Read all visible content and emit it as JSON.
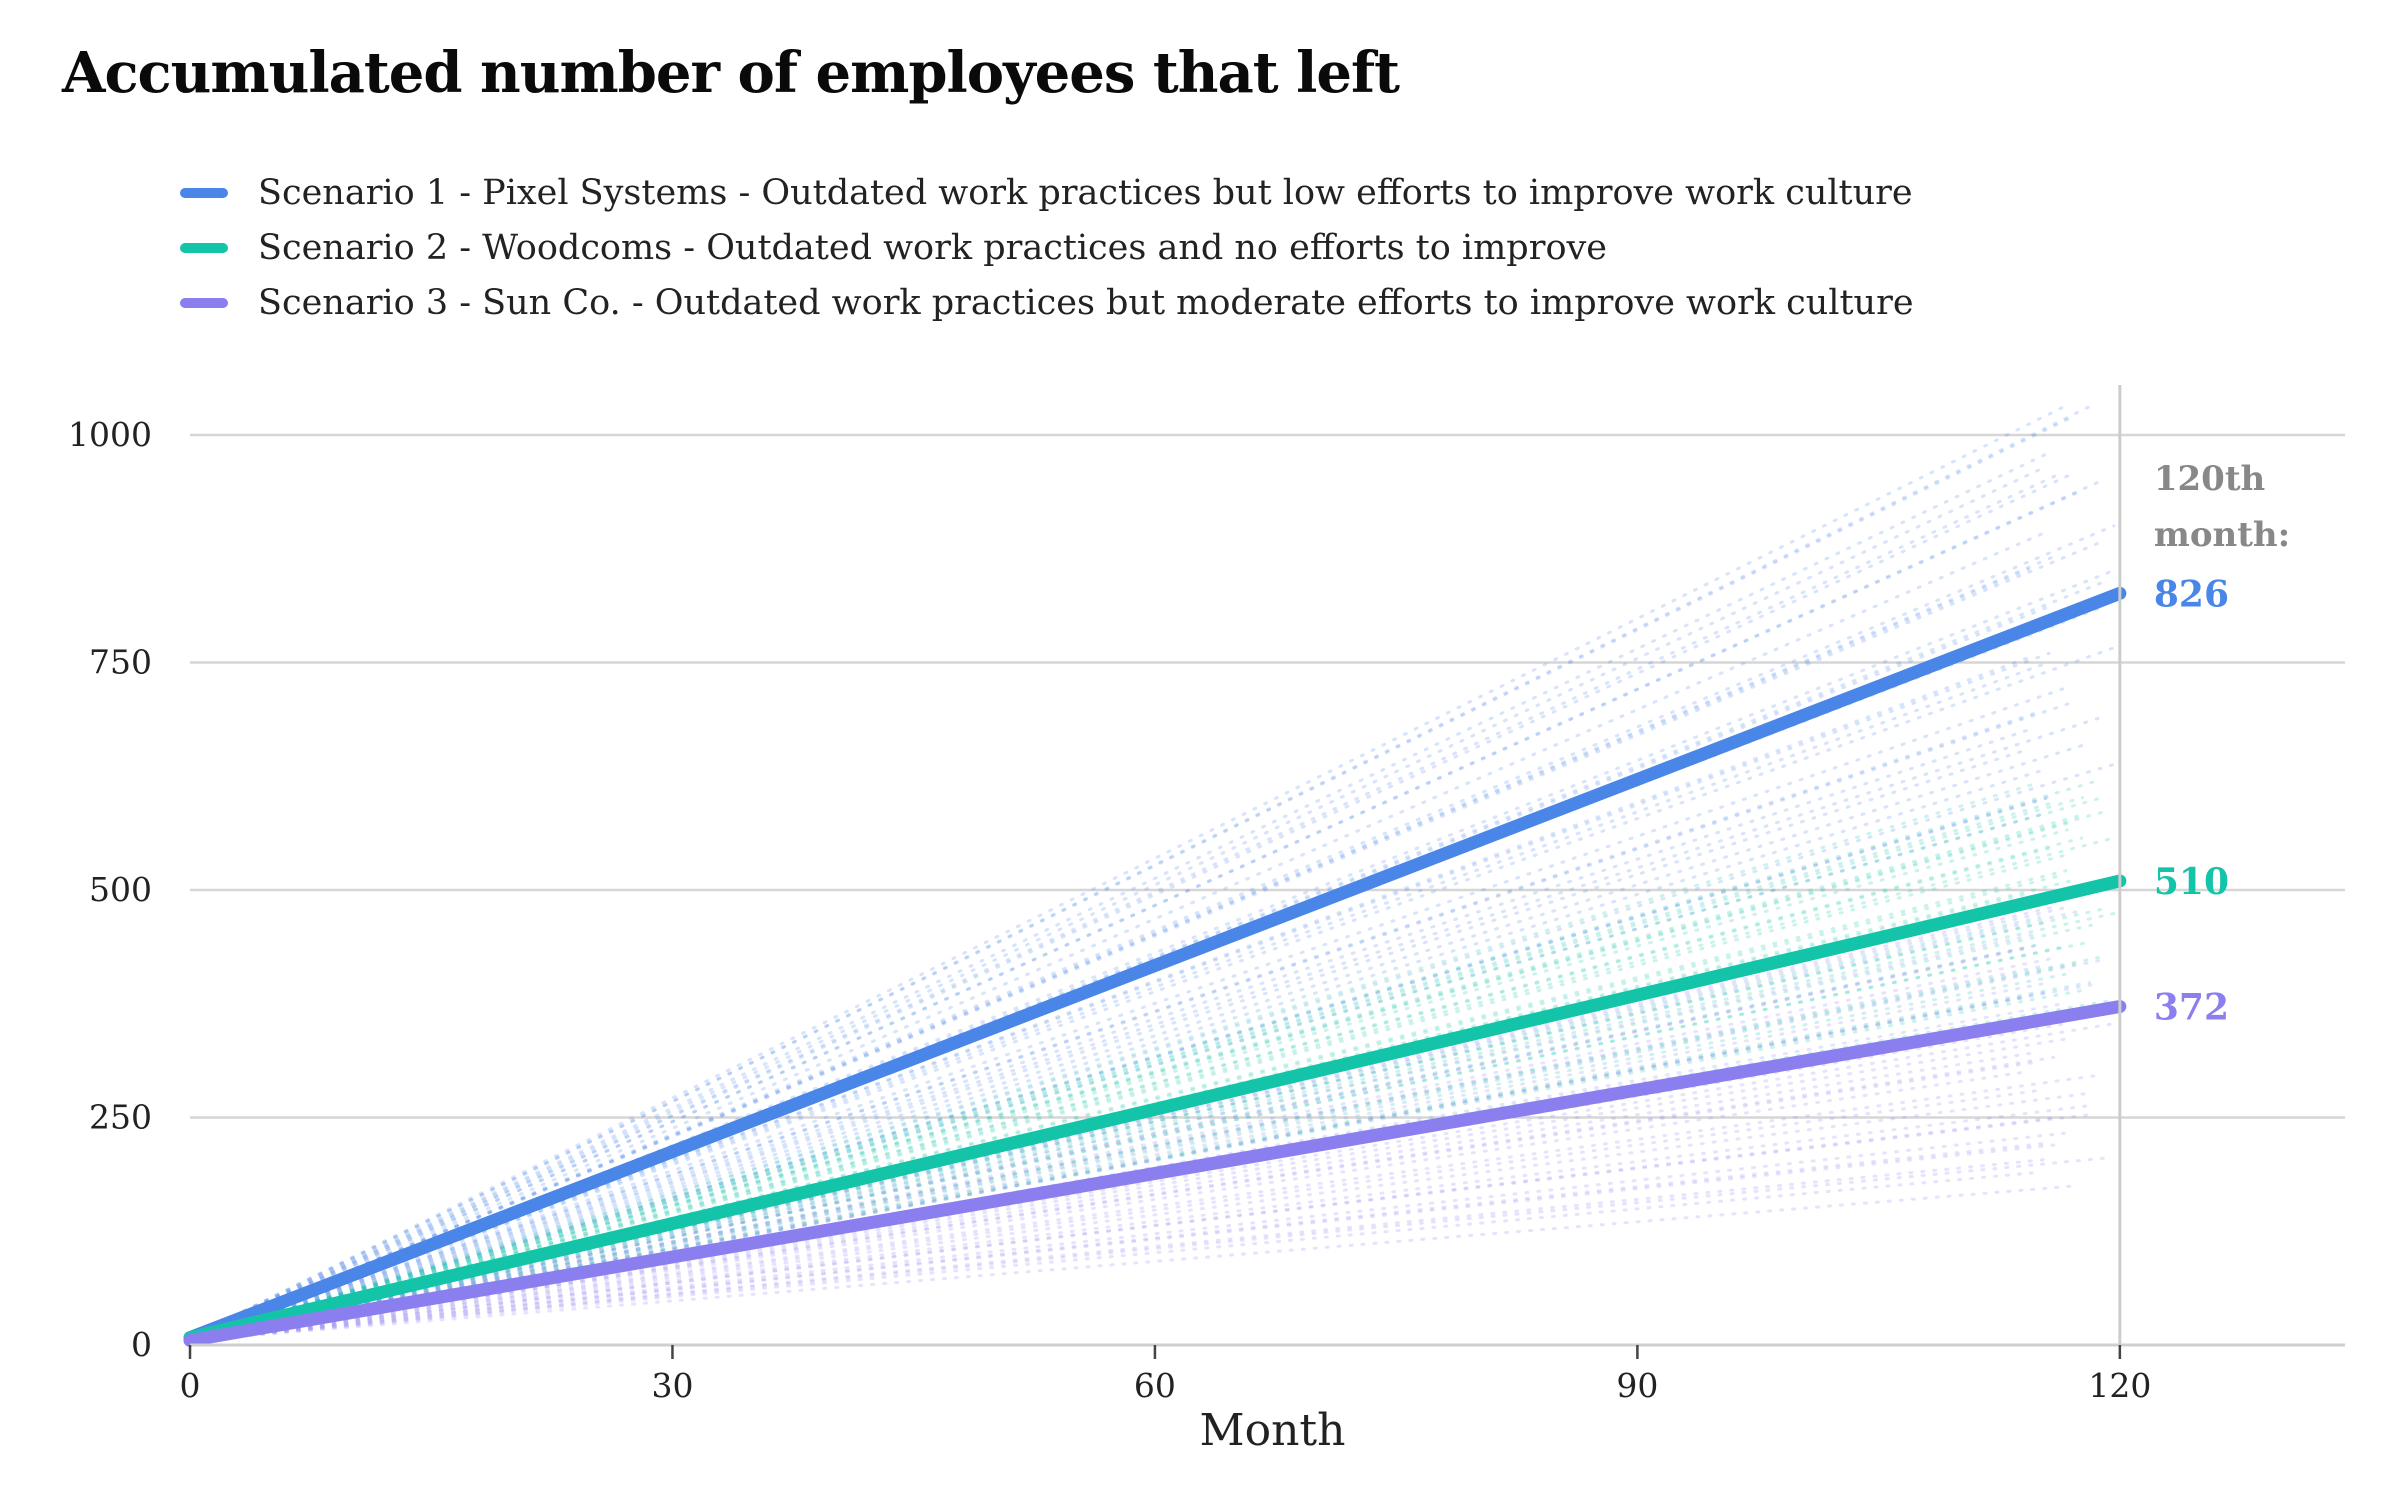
{
  "chart_data": {
    "type": "line",
    "title": "Accumulated number of employees that left",
    "xlabel": "Month",
    "ylabel": "",
    "xlim": [
      0,
      134
    ],
    "ylim": [
      0,
      1000
    ],
    "x_ticks": [
      0,
      30,
      60,
      90,
      120
    ],
    "y_ticks": [
      0,
      250,
      500,
      750,
      1000
    ],
    "grid": "horizontal",
    "legend_position": "top-left",
    "end_marker_x": 120,
    "end_header": [
      "120th",
      "month:"
    ],
    "series": [
      {
        "name": "Scenario 1 - Pixel Systems - Outdated work practices but low efforts to improve work culture",
        "color": "#4a86e8",
        "x": [
          0,
          120
        ],
        "y": [
          8,
          826
        ],
        "end_label": "826",
        "simulation_spread": [
          0.72,
          1.28
        ]
      },
      {
        "name": "Scenario 2 - Woodcoms - Outdated work practices and no efforts to improve",
        "color": "#14c4a8",
        "x": [
          0,
          120
        ],
        "y": [
          8,
          510
        ],
        "end_label": "510",
        "simulation_spread": [
          0.75,
          1.25
        ]
      },
      {
        "name": "Scenario 3 - Sun Co. - Outdated work practices but moderate efforts to improve work culture",
        "color": "#8b7ff0",
        "x": [
          0,
          120
        ],
        "y": [
          5,
          372
        ],
        "end_label": "372",
        "simulation_spread": [
          0.5,
          1.35
        ]
      }
    ]
  }
}
